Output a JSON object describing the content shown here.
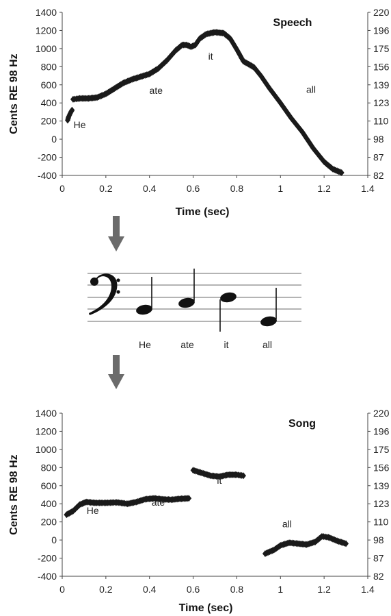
{
  "chart_data": [
    {
      "type": "scatter",
      "title": "Speech",
      "xlabel": "Time (sec)",
      "ylabel": "Cents RE 98 Hz",
      "xlim": [
        0,
        1.4
      ],
      "ylim": [
        -400,
        1400
      ],
      "xticks": [
        "0",
        "0.2",
        "0.4",
        "0.6",
        "0.8",
        "1",
        "1.2",
        "1.4"
      ],
      "yticks": [
        "-400",
        "-200",
        "0",
        "200",
        "400",
        "600",
        "800",
        "1000",
        "1200",
        "1400"
      ],
      "y2ticks": [
        "82",
        "87",
        "98",
        "110",
        "123",
        "139",
        "156",
        "175",
        "196",
        "220"
      ],
      "grid": false,
      "marker": "diamond",
      "series_color": "#1a1a1a",
      "segments": [
        [
          [
            0.025,
            210
          ],
          [
            0.03,
            250
          ],
          [
            0.04,
            300
          ],
          [
            0.045,
            320
          ]
        ],
        [
          [
            0.05,
            440
          ],
          [
            0.08,
            450
          ],
          [
            0.12,
            450
          ],
          [
            0.16,
            460
          ],
          [
            0.2,
            500
          ],
          [
            0.24,
            560
          ],
          [
            0.28,
            620
          ],
          [
            0.32,
            660
          ],
          [
            0.36,
            690
          ],
          [
            0.4,
            720
          ],
          [
            0.44,
            780
          ],
          [
            0.48,
            870
          ],
          [
            0.52,
            980
          ],
          [
            0.55,
            1040
          ],
          [
            0.57,
            1040
          ],
          [
            0.59,
            1020
          ],
          [
            0.61,
            1040
          ],
          [
            0.63,
            1110
          ],
          [
            0.66,
            1160
          ],
          [
            0.7,
            1180
          ],
          [
            0.74,
            1170
          ],
          [
            0.77,
            1110
          ],
          [
            0.8,
            990
          ],
          [
            0.83,
            860
          ],
          [
            0.86,
            820
          ],
          [
            0.88,
            790
          ],
          [
            0.91,
            700
          ],
          [
            0.95,
            560
          ],
          [
            1.0,
            400
          ],
          [
            1.05,
            230
          ],
          [
            1.1,
            80
          ],
          [
            1.15,
            -100
          ],
          [
            1.2,
            -250
          ],
          [
            1.24,
            -330
          ],
          [
            1.28,
            -370
          ]
        ]
      ],
      "annotations": [
        {
          "text": "He",
          "x": 0.08,
          "y": 120
        },
        {
          "text": "ate",
          "x": 0.43,
          "y": 500
        },
        {
          "text": "it",
          "x": 0.68,
          "y": 880
        },
        {
          "text": "all",
          "x": 1.14,
          "y": 510
        }
      ]
    },
    {
      "type": "scatter",
      "title": "Song",
      "xlabel": "Time (sec)",
      "ylabel": "Cents RE 98 Hz",
      "xlim": [
        0,
        1.4
      ],
      "ylim": [
        -400,
        1400
      ],
      "xticks": [
        "0",
        "0.2",
        "0.4",
        "0.6",
        "0.8",
        "1",
        "1.2",
        "1.4"
      ],
      "yticks": [
        "-400",
        "-200",
        "0",
        "200",
        "400",
        "600",
        "800",
        "1000",
        "1200",
        "1400"
      ],
      "y2ticks": [
        "82",
        "87",
        "98",
        "110",
        "123",
        "139",
        "156",
        "175",
        "196",
        "220"
      ],
      "grid": false,
      "marker": "diamond",
      "series_color": "#1a1a1a",
      "segments": [
        [
          [
            0.02,
            280
          ],
          [
            0.05,
            320
          ],
          [
            0.08,
            390
          ],
          [
            0.11,
            420
          ],
          [
            0.15,
            410
          ],
          [
            0.2,
            410
          ],
          [
            0.25,
            415
          ],
          [
            0.3,
            400
          ],
          [
            0.34,
            420
          ],
          [
            0.38,
            450
          ],
          [
            0.42,
            460
          ],
          [
            0.46,
            450
          ],
          [
            0.5,
            445
          ],
          [
            0.54,
            455
          ],
          [
            0.58,
            460
          ]
        ],
        [
          [
            0.6,
            770
          ],
          [
            0.64,
            740
          ],
          [
            0.68,
            710
          ],
          [
            0.72,
            700
          ],
          [
            0.76,
            720
          ],
          [
            0.8,
            720
          ],
          [
            0.83,
            710
          ]
        ],
        [
          [
            0.93,
            -150
          ],
          [
            0.97,
            -110
          ],
          [
            1.0,
            -60
          ],
          [
            1.04,
            -30
          ],
          [
            1.08,
            -40
          ],
          [
            1.12,
            -50
          ],
          [
            1.16,
            -20
          ],
          [
            1.19,
            40
          ],
          [
            1.22,
            30
          ],
          [
            1.26,
            -10
          ],
          [
            1.3,
            -40
          ]
        ]
      ],
      "annotations": [
        {
          "text": "He",
          "x": 0.14,
          "y": 290
        },
        {
          "text": "ate",
          "x": 0.44,
          "y": 380
        },
        {
          "text": "it",
          "x": 0.72,
          "y": 620
        },
        {
          "text": "all",
          "x": 1.03,
          "y": 140
        }
      ]
    }
  ],
  "notation": {
    "clef": "bass-clef",
    "note_color": "#111111",
    "words": [
      "He",
      "ate",
      "it",
      "all"
    ]
  },
  "arrow_color": "#6b6b6b"
}
